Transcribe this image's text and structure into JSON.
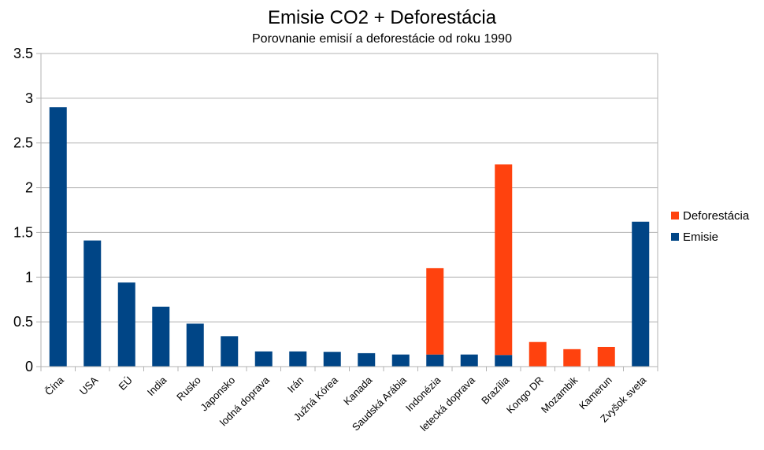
{
  "chart_data": {
    "type": "bar",
    "stacked": true,
    "title": "Emisie CO2 + Deforestácia",
    "subtitle": "Porovnanie emisií a deforestácie od roku 1990",
    "xlabel": "",
    "ylabel": "",
    "ylim": [
      0,
      3.5
    ],
    "yticks": [
      "0",
      "0.5",
      "1",
      "1.5",
      "2",
      "2.5",
      "3",
      "3.5"
    ],
    "grid": true,
    "legend_position": "right",
    "categories": [
      "Čína",
      "USA",
      "EÚ",
      "India",
      "Rusko",
      "Japonsko",
      "lodná doprava",
      "Irán",
      "Južná Kórea",
      "Kanada",
      "Saudská Arábia",
      "Indonézia",
      "letecká doprava",
      "Brazília",
      "Kongo DR",
      "Mozambik",
      "Kamerun",
      "Zvyšok sveta"
    ],
    "series": [
      {
        "name": "Emisie",
        "color": "#004586",
        "values": [
          2.9,
          1.41,
          0.94,
          0.67,
          0.48,
          0.34,
          0.17,
          0.17,
          0.165,
          0.15,
          0.135,
          0.135,
          0.135,
          0.13,
          0,
          0,
          0,
          1.62
        ]
      },
      {
        "name": "Deforestácia",
        "color": "#ff420e",
        "values": [
          0,
          0,
          0,
          0,
          0,
          0,
          0,
          0,
          0,
          0,
          0,
          0.965,
          0,
          2.13,
          0.275,
          0.195,
          0.22,
          0
        ]
      }
    ]
  }
}
